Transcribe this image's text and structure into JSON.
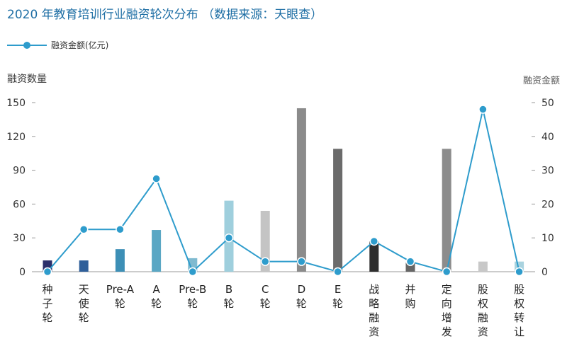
{
  "chart_data": {
    "type": "bar",
    "title": "2020 年教育培训行业融资轮次分布 （数据来源：天眼查）",
    "ylabel_left": "融资数量",
    "ylabel_right": "融资金额",
    "categories": [
      "种子轮",
      "天使轮",
      "Pre-A轮",
      "A轮",
      "Pre-B轮",
      "B轮",
      "C轮",
      "D轮",
      "E轮",
      "战略融资",
      "并购",
      "定向增发",
      "股权融资",
      "股权转让"
    ],
    "series": [
      {
        "kind": "bar",
        "axis": "left",
        "values": [
          10,
          10,
          20,
          37,
          12,
          63,
          54,
          145,
          109,
          27,
          8,
          109,
          9,
          9
        ],
        "colors": [
          "#2b2f6b",
          "#2f5f9a",
          "#3d8fb6",
          "#5aa7c4",
          "#7fbad0",
          "#9fcfdd",
          "#c4c4c4",
          "#8b8b8b",
          "#6b6b6b",
          "#2e2e2e",
          "#666666",
          "#8c8c8c",
          "#c8c8c8",
          "#a9d3df"
        ]
      },
      {
        "kind": "line",
        "axis": "right",
        "name": "融资金额(亿元)",
        "values": [
          0,
          12.5,
          12.5,
          27.5,
          0,
          10,
          3,
          3,
          0,
          9,
          3,
          0,
          48,
          0
        ],
        "color": "#2e9ccc"
      }
    ],
    "ylim_left": [
      0,
      150
    ],
    "yticks_left": [
      0,
      30,
      60,
      90,
      120,
      150
    ],
    "ylim_right": [
      0,
      50
    ],
    "yticks_right": [
      0,
      10,
      20,
      30,
      40,
      50
    ],
    "legend_position": "top-left",
    "grid": false
  }
}
